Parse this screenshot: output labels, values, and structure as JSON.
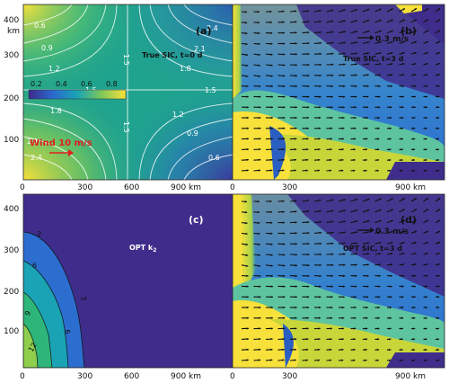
{
  "panels": {
    "a": {
      "letter": "(a)",
      "title": "True SIC, t=0 d",
      "wind_label": "Wind  10 m/s",
      "colorbar_ticks": [
        "0.2",
        "0.4",
        "0.6",
        "0.8"
      ],
      "contour_labels": [
        "0.6",
        "0.9",
        "1.2",
        "1.5",
        "1.8",
        "2.1",
        "2.4",
        "1.5",
        "1.5",
        "1.5",
        "2.4",
        "2.1",
        "1.8",
        "1.2",
        "0.9",
        "0.6",
        "2.4",
        "2.1",
        "1.8",
        "1.2",
        "0.9",
        "0.6"
      ]
    },
    "b": {
      "letter": "(b)",
      "title": "True SIC, t=3 d",
      "speed_label": "0.3 m/s"
    },
    "c": {
      "letter": "(c)",
      "title_main": "OPT k",
      "title_sub": "2",
      "contour_labels": [
        "3",
        "6",
        "9",
        "12",
        "3",
        "6"
      ]
    },
    "d": {
      "letter": "(d)",
      "title": "OPT SIC, t=3 d",
      "speed_label": "0.3 m/s"
    }
  },
  "axes": {
    "y_unit": "km",
    "x_ticks_left": [
      "0",
      "300",
      "600",
      "900 km"
    ],
    "x_ticks_right": [
      "0",
      "300",
      "900 km"
    ],
    "y_ticks": [
      "400",
      "300",
      "200",
      "100"
    ]
  },
  "colors": {
    "navy": "#3f2d8c",
    "yellow": "#f7e13a",
    "arrow": "#111111",
    "wind_arrow": "#e01e1e",
    "contour": "#ffffff"
  }
}
